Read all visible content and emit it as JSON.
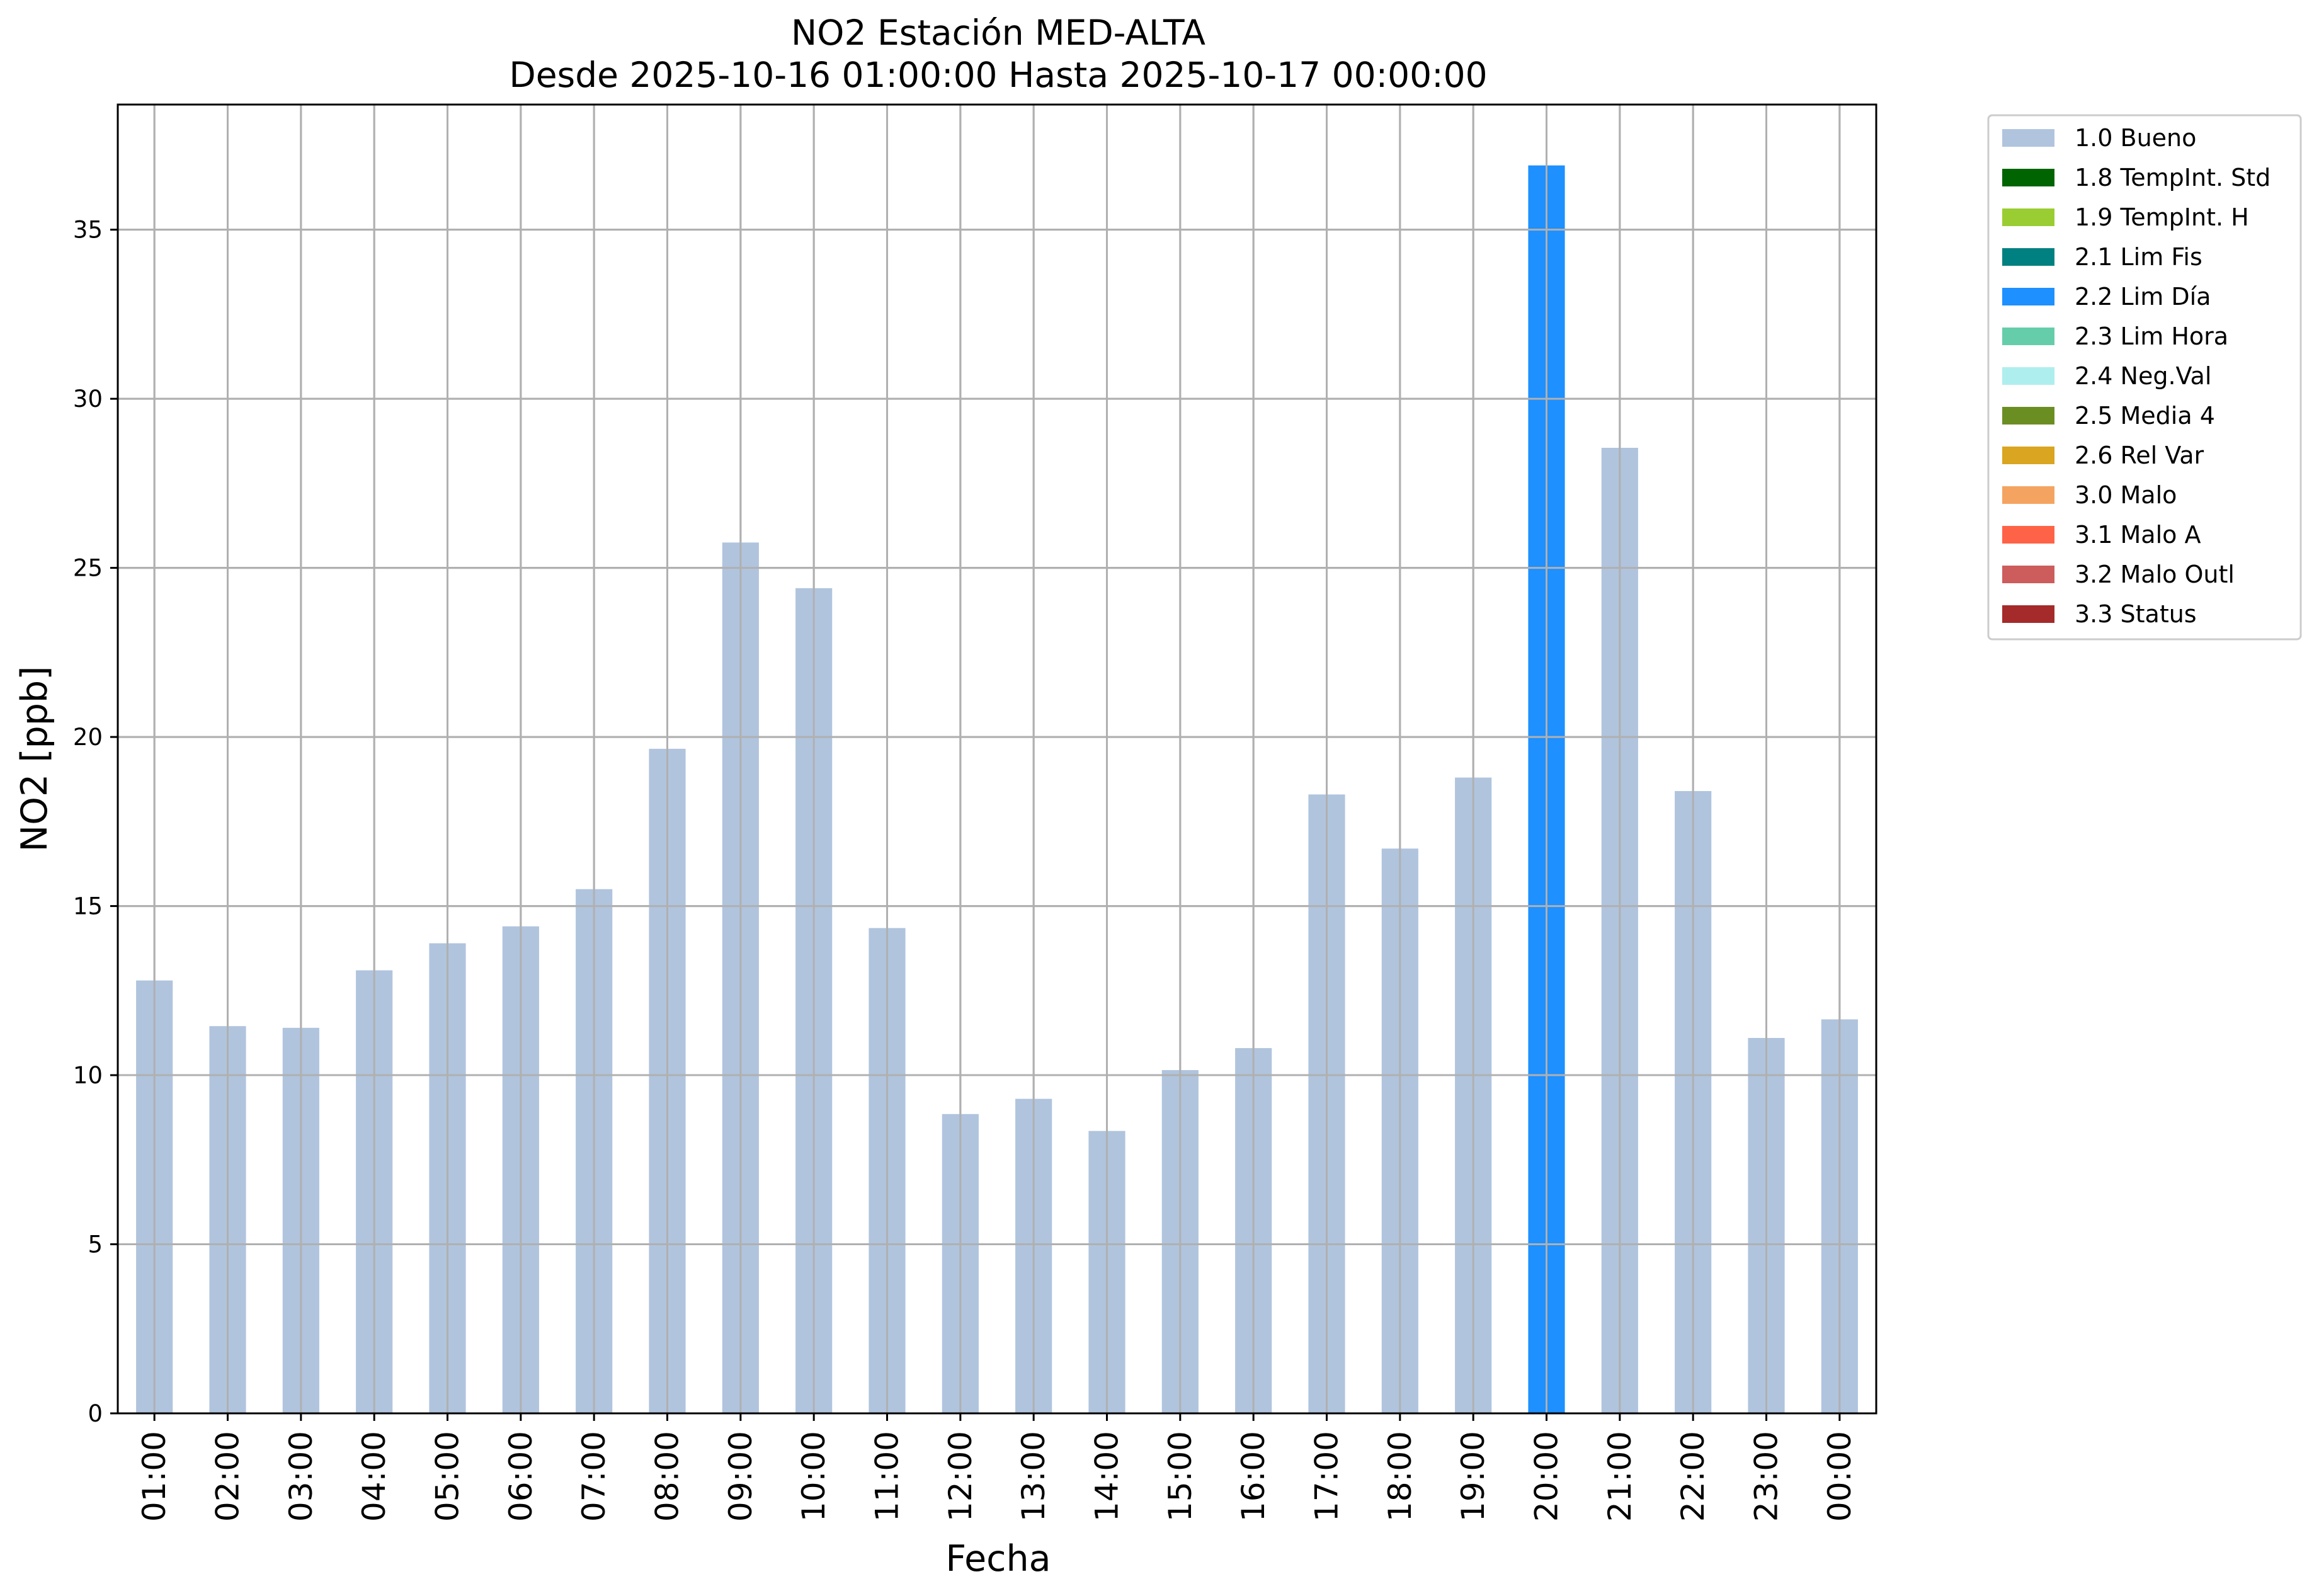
{
  "chart_data": {
    "type": "bar",
    "title": "NO2 Estación MED-ALTA",
    "subtitle": "Desde 2025-10-16 01:00:00 Hasta 2025-10-17 00:00:00",
    "xlabel": "Fecha",
    "ylabel": "NO2 [ppb]",
    "ylim": [
      0,
      38.7
    ],
    "yticks": [
      0,
      5,
      10,
      15,
      20,
      25,
      30,
      35
    ],
    "grid": true,
    "legend_position": "outside-top-right",
    "categories": [
      "01:00",
      "02:00",
      "03:00",
      "04:00",
      "05:00",
      "06:00",
      "07:00",
      "08:00",
      "09:00",
      "10:00",
      "11:00",
      "12:00",
      "13:00",
      "14:00",
      "15:00",
      "16:00",
      "17:00",
      "18:00",
      "19:00",
      "20:00",
      "21:00",
      "22:00",
      "23:00",
      "00:00"
    ],
    "values": [
      12.8,
      11.45,
      11.4,
      13.1,
      13.9,
      14.4,
      15.5,
      19.65,
      25.75,
      24.4,
      14.35,
      8.85,
      9.3,
      8.35,
      10.15,
      10.8,
      18.3,
      16.7,
      18.8,
      36.9,
      28.55,
      18.4,
      11.1,
      11.65
    ],
    "flags": [
      "1.0",
      "1.0",
      "1.0",
      "1.0",
      "1.0",
      "1.0",
      "1.0",
      "1.0",
      "1.0",
      "1.0",
      "1.0",
      "1.0",
      "1.0",
      "1.0",
      "1.0",
      "1.0",
      "1.0",
      "1.0",
      "1.0",
      "2.2",
      "1.0",
      "1.0",
      "1.0",
      "1.0"
    ],
    "legend": [
      {
        "code": "1.0",
        "label": "1.0 Bueno",
        "color": "#b0c4de"
      },
      {
        "code": "1.8",
        "label": "1.8 TempInt. Std",
        "color": "#006400"
      },
      {
        "code": "1.9",
        "label": "1.9 TempInt. H",
        "color": "#9acd32"
      },
      {
        "code": "2.1",
        "label": "2.1 Lim Fis",
        "color": "#008080"
      },
      {
        "code": "2.2",
        "label": "2.2 Lim Día",
        "color": "#1e90ff"
      },
      {
        "code": "2.3",
        "label": "2.3 Lim Hora",
        "color": "#66cdaa"
      },
      {
        "code": "2.4",
        "label": "2.4 Neg.Val",
        "color": "#afeeee"
      },
      {
        "code": "2.5",
        "label": "2.5 Media 4",
        "color": "#6b8e23"
      },
      {
        "code": "2.6",
        "label": "2.6 Rel Var",
        "color": "#daa520"
      },
      {
        "code": "3.0",
        "label": "3.0 Malo",
        "color": "#f4a460"
      },
      {
        "code": "3.1",
        "label": "3.1 Malo A",
        "color": "#ff6347"
      },
      {
        "code": "3.2",
        "label": "3.2 Malo Outl",
        "color": "#cd5c5c"
      },
      {
        "code": "3.3",
        "label": "3.3 Status",
        "color": "#a52a2a"
      }
    ]
  }
}
